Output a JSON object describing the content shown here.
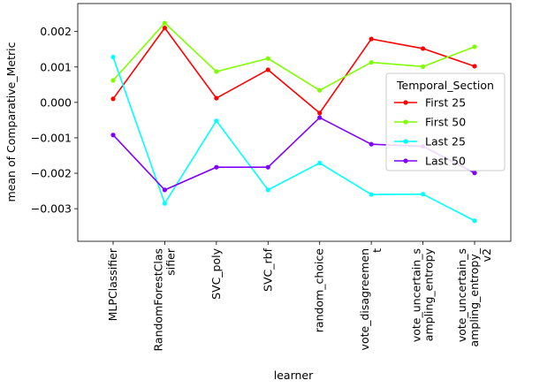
{
  "chart_data": {
    "type": "line",
    "xlabel": "learner",
    "ylabel": "mean of Comparative_Metric",
    "categories": [
      "MLPClassifier",
      "RandomForestClas\nsifier",
      "SVC_poly",
      "SVC_rbf",
      "random_choice",
      "vote_disagreemen\nt",
      "vote_uncertain_s\nampling_entropy",
      "vote_uncertain_s\nampling_entropy_\nv2"
    ],
    "yticks": [
      -0.003,
      -0.002,
      -0.001,
      0.0,
      0.001,
      0.002
    ],
    "ytick_labels": [
      "−0.003",
      "−0.002",
      "−0.001",
      "0.000",
      "0.001",
      "0.002"
    ],
    "ylim": [
      -0.00392,
      0.00279
    ],
    "grid": false,
    "legend": {
      "title": "Temporal_Section",
      "placement": "center-right"
    },
    "series": [
      {
        "name": "First 25",
        "color": "#ff0000",
        "values": [
          0.0001,
          0.0021,
          0.00012,
          0.00092,
          -0.0003,
          0.00179,
          0.00152,
          0.00102
        ]
      },
      {
        "name": "First 50",
        "color": "#80ff00",
        "values": [
          0.00062,
          0.00224,
          0.00087,
          0.00124,
          0.00034,
          0.00113,
          0.00101,
          0.00157
        ]
      },
      {
        "name": "Last 25",
        "color": "#00ffff",
        "values": [
          0.00128,
          -0.00285,
          -0.00052,
          -0.00247,
          -0.00171,
          -0.0026,
          -0.00259,
          -0.00334
        ]
      },
      {
        "name": "Last 50",
        "color": "#8000ff",
        "values": [
          -0.00092,
          -0.00247,
          -0.00183,
          -0.00183,
          -0.00043,
          -0.00118,
          -0.00124,
          -0.00199
        ]
      }
    ]
  }
}
